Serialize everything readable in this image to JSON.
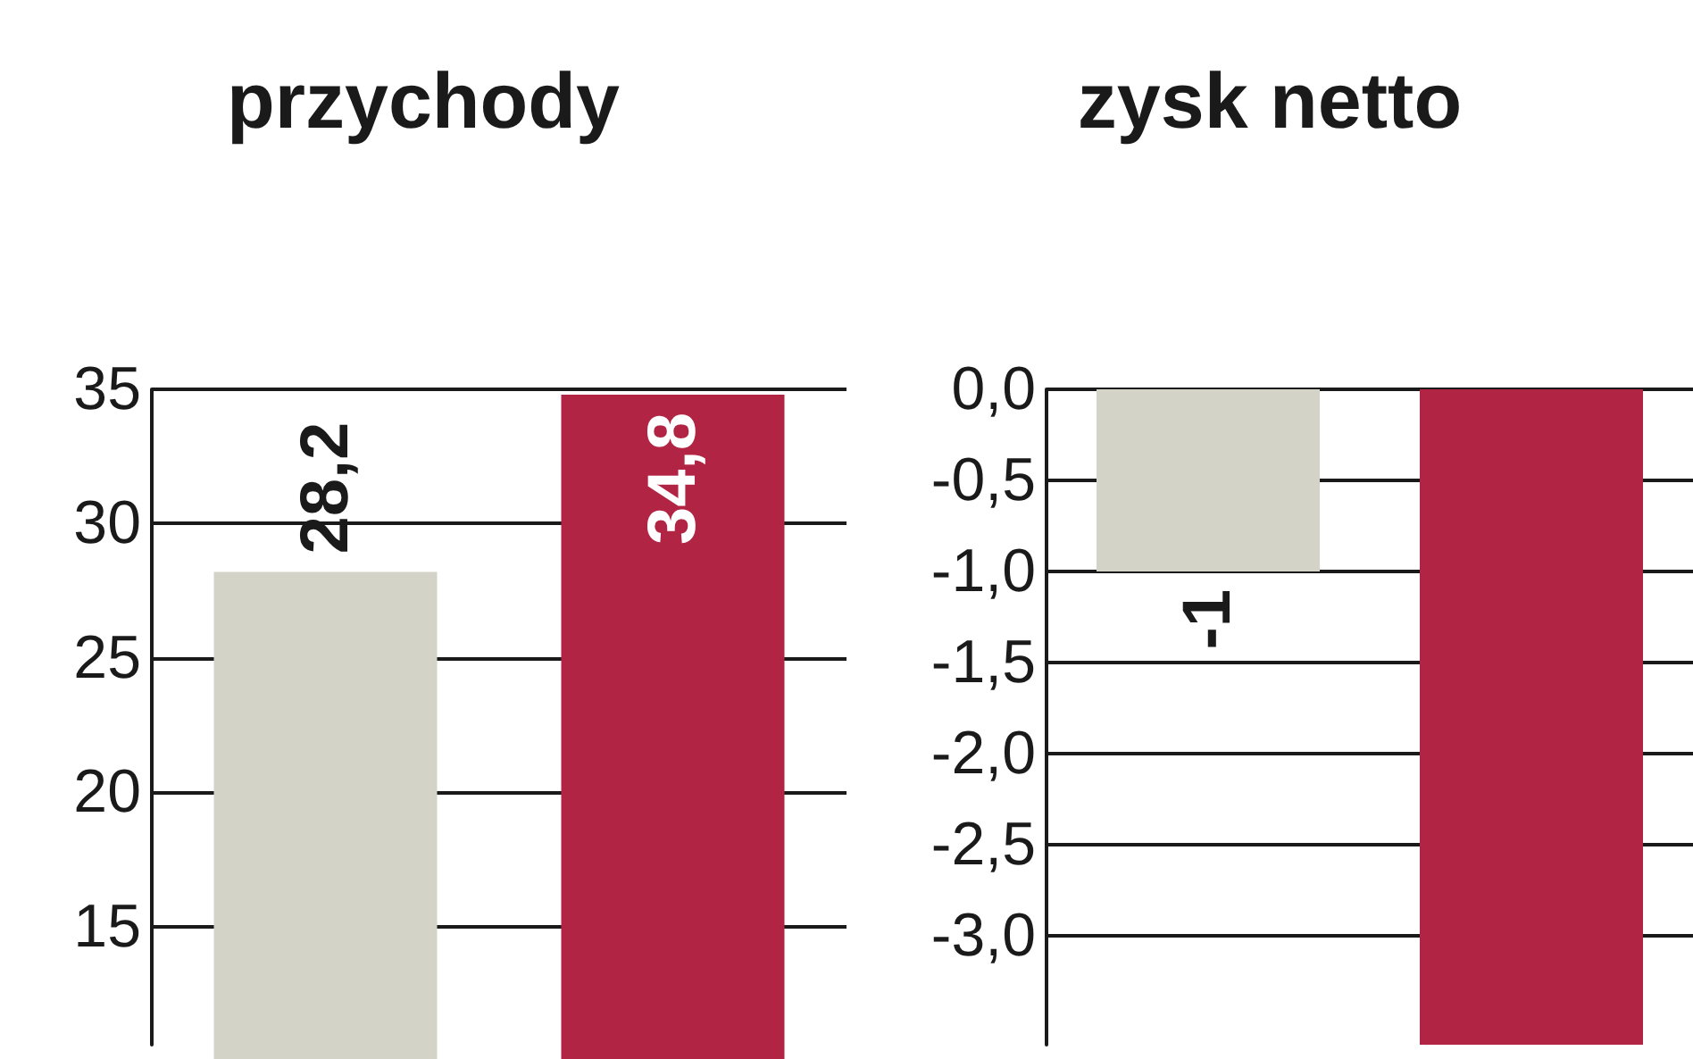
{
  "chart_data": [
    {
      "type": "bar",
      "title": "przychody",
      "categories": [
        null,
        null
      ],
      "values": [
        28.2,
        34.8
      ],
      "colors": [
        "#d3d3c7",
        "#b12443"
      ],
      "value_labels": [
        "28,2",
        "34,8"
      ],
      "ylim": [
        10.6,
        35
      ],
      "yticks": [
        15,
        20,
        25,
        30,
        35
      ],
      "grid": "y"
    },
    {
      "type": "bar",
      "title": "zysk netto",
      "categories": [
        null,
        null
      ],
      "values": [
        -1,
        -3.6
      ],
      "colors": [
        "#d3d3c7",
        "#b12443"
      ],
      "value_labels": [
        "-1",
        null
      ],
      "ylim": [
        -3.6,
        0
      ],
      "yticks": [
        {
          "value": -3,
          "label": "-3,0"
        },
        {
          "value": -2.5,
          "label": "-2,5"
        },
        {
          "value": -2,
          "label": "-2,0"
        },
        {
          "value": -1.5,
          "label": "-1,5"
        },
        {
          "value": -1,
          "label": "-1,0"
        },
        {
          "value": -0.5,
          "label": "-0,5"
        },
        {
          "value": 0,
          "label": "0,0"
        }
      ],
      "grid": "y"
    }
  ]
}
